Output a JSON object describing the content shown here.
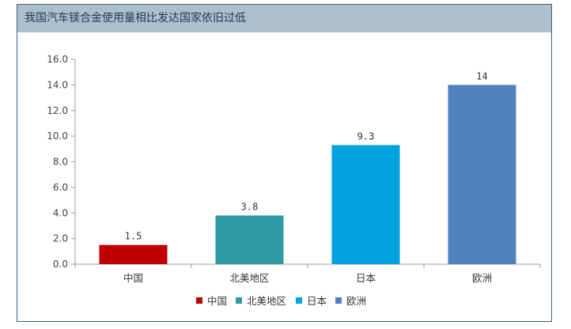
{
  "chart_data": {
    "type": "bar",
    "title": "我国汽车镁合金使用量相比发达国家依旧过低",
    "categories": [
      "中国",
      "北美地区",
      "日本",
      "欧洲"
    ],
    "values": [
      1.5,
      3.8,
      9.3,
      14
    ],
    "value_labels": [
      "1.5",
      "3.8",
      "9.3",
      "14"
    ],
    "colors": [
      "#c00000",
      "#2e9aa2",
      "#00a2e0",
      "#4f82bd"
    ],
    "ylim": [
      0,
      16
    ],
    "yticks": [
      "0.0",
      "2.0",
      "4.0",
      "6.0",
      "8.0",
      "10.0",
      "12.0",
      "14.0",
      "16.0"
    ],
    "xlabel": "",
    "ylabel": "",
    "grid": false,
    "legend_position": "bottom",
    "legend": [
      "中国",
      "北美地区",
      "日本",
      "欧洲"
    ]
  }
}
